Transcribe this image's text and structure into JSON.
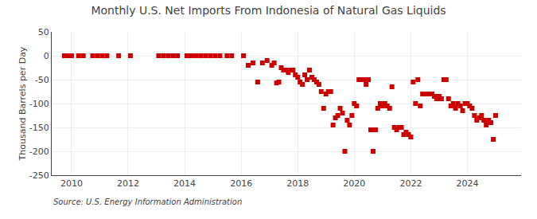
{
  "chart_data": {
    "type": "scatter",
    "title": "Monthly U.S. Net Imports From Indonesia of Natural Gas Liquids",
    "ylabel": "Thousand Barrels per Day",
    "annotations": [
      "Source: U.S. Energy Information Administration"
    ],
    "color": "#cc0000",
    "marker": "square",
    "grid": true,
    "xlim": [
      2009.3,
      2025.9
    ],
    "xticks": [
      2010,
      2012,
      2014,
      2016,
      2018,
      2020,
      2022,
      2024
    ],
    "ylim": [
      -250,
      50
    ],
    "yticks": [
      50,
      0,
      -50,
      -100,
      -150,
      -200,
      -250
    ],
    "x": [
      2009.75,
      2009.917,
      2010.0,
      2010.25,
      2010.417,
      2010.75,
      2010.917,
      2011.083,
      2011.25,
      2011.667,
      2012.083,
      2013.083,
      2013.25,
      2013.417,
      2013.583,
      2013.75,
      2014.083,
      2014.25,
      2014.417,
      2014.583,
      2014.75,
      2014.917,
      2015.083,
      2015.25,
      2015.5,
      2015.667,
      2016.083,
      2016.25,
      2016.417,
      2016.583,
      2016.75,
      2016.917,
      2017.083,
      2017.167,
      2017.25,
      2017.333,
      2017.417,
      2017.5,
      2017.583,
      2017.667,
      2017.75,
      2017.833,
      2017.917,
      2018.0,
      2018.083,
      2018.167,
      2018.25,
      2018.333,
      2018.417,
      2018.5,
      2018.583,
      2018.667,
      2018.75,
      2018.833,
      2018.917,
      2019.0,
      2019.083,
      2019.167,
      2019.25,
      2019.333,
      2019.417,
      2019.5,
      2019.583,
      2019.667,
      2019.75,
      2019.833,
      2019.917,
      2020.0,
      2020.083,
      2020.167,
      2020.25,
      2020.333,
      2020.417,
      2020.5,
      2020.583,
      2020.667,
      2020.75,
      2020.833,
      2020.917,
      2021.0,
      2021.083,
      2021.167,
      2021.25,
      2021.333,
      2021.417,
      2021.5,
      2021.583,
      2021.667,
      2021.75,
      2021.833,
      2021.917,
      2022.0,
      2022.083,
      2022.167,
      2022.25,
      2022.333,
      2022.417,
      2022.5,
      2022.583,
      2022.667,
      2022.75,
      2022.833,
      2022.917,
      2023.0,
      2023.083,
      2023.167,
      2023.25,
      2023.333,
      2023.417,
      2023.5,
      2023.583,
      2023.667,
      2023.75,
      2023.833,
      2023.917,
      2024.0,
      2024.083,
      2024.167,
      2024.25,
      2024.333,
      2024.417,
      2024.5,
      2024.583,
      2024.667,
      2024.75,
      2024.833,
      2024.917,
      2025.0
    ],
    "values": [
      0,
      0,
      0,
      0,
      0,
      0,
      0,
      0,
      0,
      0,
      0,
      0,
      0,
      0,
      0,
      0,
      0,
      0,
      0,
      0,
      0,
      0,
      0,
      0,
      0,
      0,
      0,
      -20,
      -15,
      -55,
      -15,
      -10,
      -20,
      -15,
      -57,
      -55,
      -25,
      -30,
      -30,
      -35,
      -30,
      -30,
      -40,
      -45,
      -55,
      -60,
      -40,
      -50,
      -30,
      -45,
      -50,
      -55,
      -60,
      -75,
      -110,
      -80,
      -75,
      -75,
      -145,
      -130,
      -125,
      -110,
      -120,
      -200,
      -135,
      -145,
      -125,
      -100,
      -105,
      -50,
      -50,
      -50,
      -60,
      -50,
      -155,
      -200,
      -155,
      -110,
      -100,
      -105,
      -100,
      -105,
      -110,
      -65,
      -150,
      -155,
      -150,
      -150,
      -165,
      -160,
      -165,
      -170,
      -55,
      -100,
      -50,
      -105,
      -80,
      -80,
      -80,
      -80,
      -80,
      -85,
      -90,
      -85,
      -90,
      -50,
      -50,
      -90,
      -105,
      -100,
      -110,
      -100,
      -105,
      -115,
      -100,
      -100,
      -105,
      -110,
      -125,
      -135,
      -130,
      -125,
      -135,
      -145,
      -135,
      -140,
      -175,
      -125
    ]
  }
}
